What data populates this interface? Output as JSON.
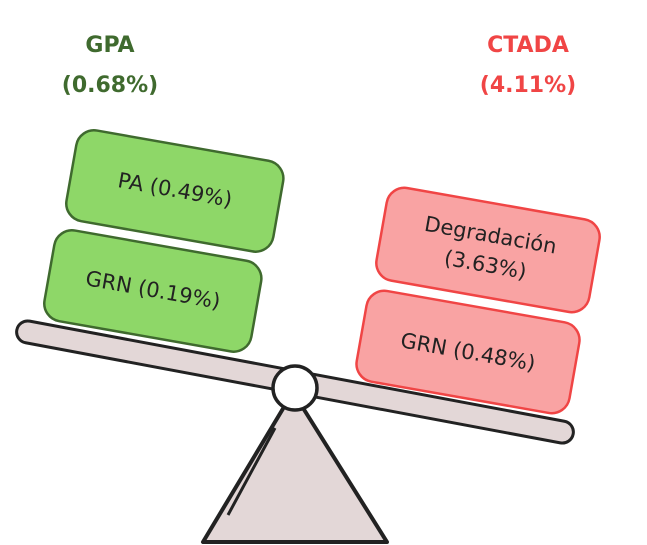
{
  "left": {
    "title": "GPA",
    "total": "(0.68%)",
    "boxes": [
      {
        "lines": [
          "PA (0.49%)"
        ]
      },
      {
        "lines": [
          "GRN (0.19%)"
        ]
      }
    ]
  },
  "right": {
    "title": "CTADA",
    "total": "(4.11%)",
    "boxes": [
      {
        "lines": [
          "Degradación",
          "(3.63%)"
        ]
      },
      {
        "lines": [
          "GRN (0.48%)"
        ]
      }
    ]
  }
}
